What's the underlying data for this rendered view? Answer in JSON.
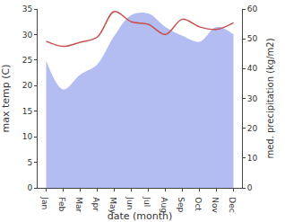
{
  "chart_data": {
    "type": "line",
    "xlabel": "date (month)",
    "ylabel": "max temp (C)",
    "y2label": "med. precipitation (kg/m2)",
    "categories": [
      "Jan",
      "Feb",
      "Mar",
      "Apr",
      "May",
      "Jun",
      "Jul",
      "Aug",
      "Sep",
      "Oct",
      "Nov",
      "Dec"
    ],
    "series": [
      {
        "type": "area",
        "axis": "y2",
        "color": "#b3bdf2",
        "values": [
          42.6,
          33,
          38,
          41.4,
          51,
          58,
          58.5,
          54,
          51,
          49,
          54,
          51.5
        ]
      },
      {
        "type": "line",
        "color": "#c8504f",
        "values": [
          28.7,
          27.7,
          28.5,
          29.5,
          34.5,
          32.5,
          32,
          30,
          33,
          31.5,
          31,
          32.3
        ]
      }
    ],
    "ylim": [
      0,
      35
    ],
    "yticks": [
      0,
      5,
      10,
      15,
      20,
      25,
      30,
      35
    ],
    "y2lim": [
      0,
      60
    ],
    "y2ticks": [
      0,
      10,
      20,
      30,
      40,
      50,
      60
    ],
    "grid": false
  }
}
